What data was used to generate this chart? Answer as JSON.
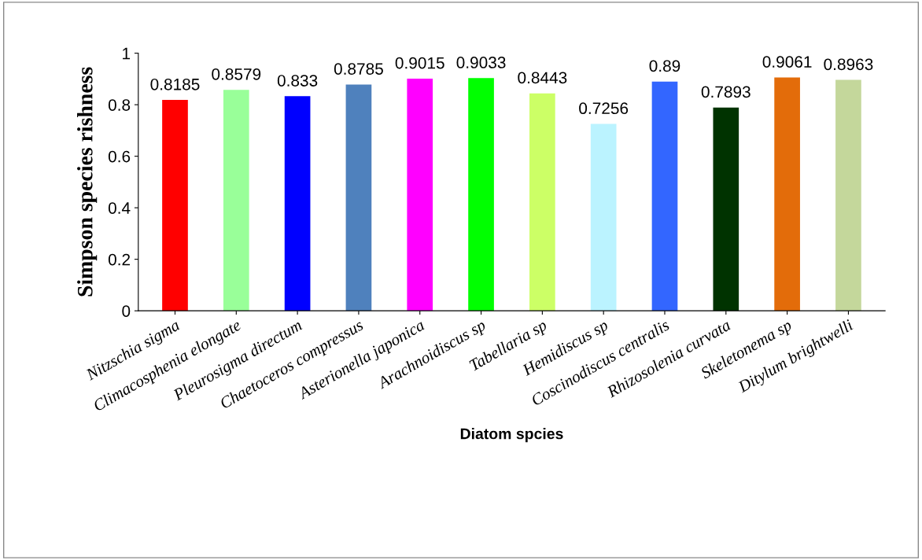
{
  "chart_data": {
    "type": "bar",
    "xlabel": "Diatom spcies",
    "ylabel": "Simpson species rishness",
    "categories": [
      "Nitzschia sigma",
      "Climacosphenia elongate",
      "Pleurosigma directum",
      "Chaetoceros compressus",
      "Asterionella japonica",
      "Arachnoidiscus sp",
      "Tabellaria sp",
      "Hemidiscus sp",
      "Coscinodiscus centralis",
      "Rhizosolenia curvata",
      "Skeletonema sp",
      "Ditylum brightwelli"
    ],
    "values": [
      0.8185,
      0.8579,
      0.833,
      0.8785,
      0.9015,
      0.9033,
      0.8443,
      0.7256,
      0.89,
      0.7893,
      0.9061,
      0.8963
    ],
    "colors": [
      "#ff0000",
      "#99ff99",
      "#0000ff",
      "#4f81bd",
      "#ff00ff",
      "#00ff00",
      "#ccff66",
      "#bbf3ff",
      "#3366ff",
      "#003300",
      "#e36c0a",
      "#c4d79b"
    ],
    "ylim": [
      0,
      1
    ],
    "yticks": [
      0,
      0.2,
      0.4,
      0.6,
      0.8,
      1
    ],
    "data_labels": true,
    "grid": false,
    "legend": false
  }
}
